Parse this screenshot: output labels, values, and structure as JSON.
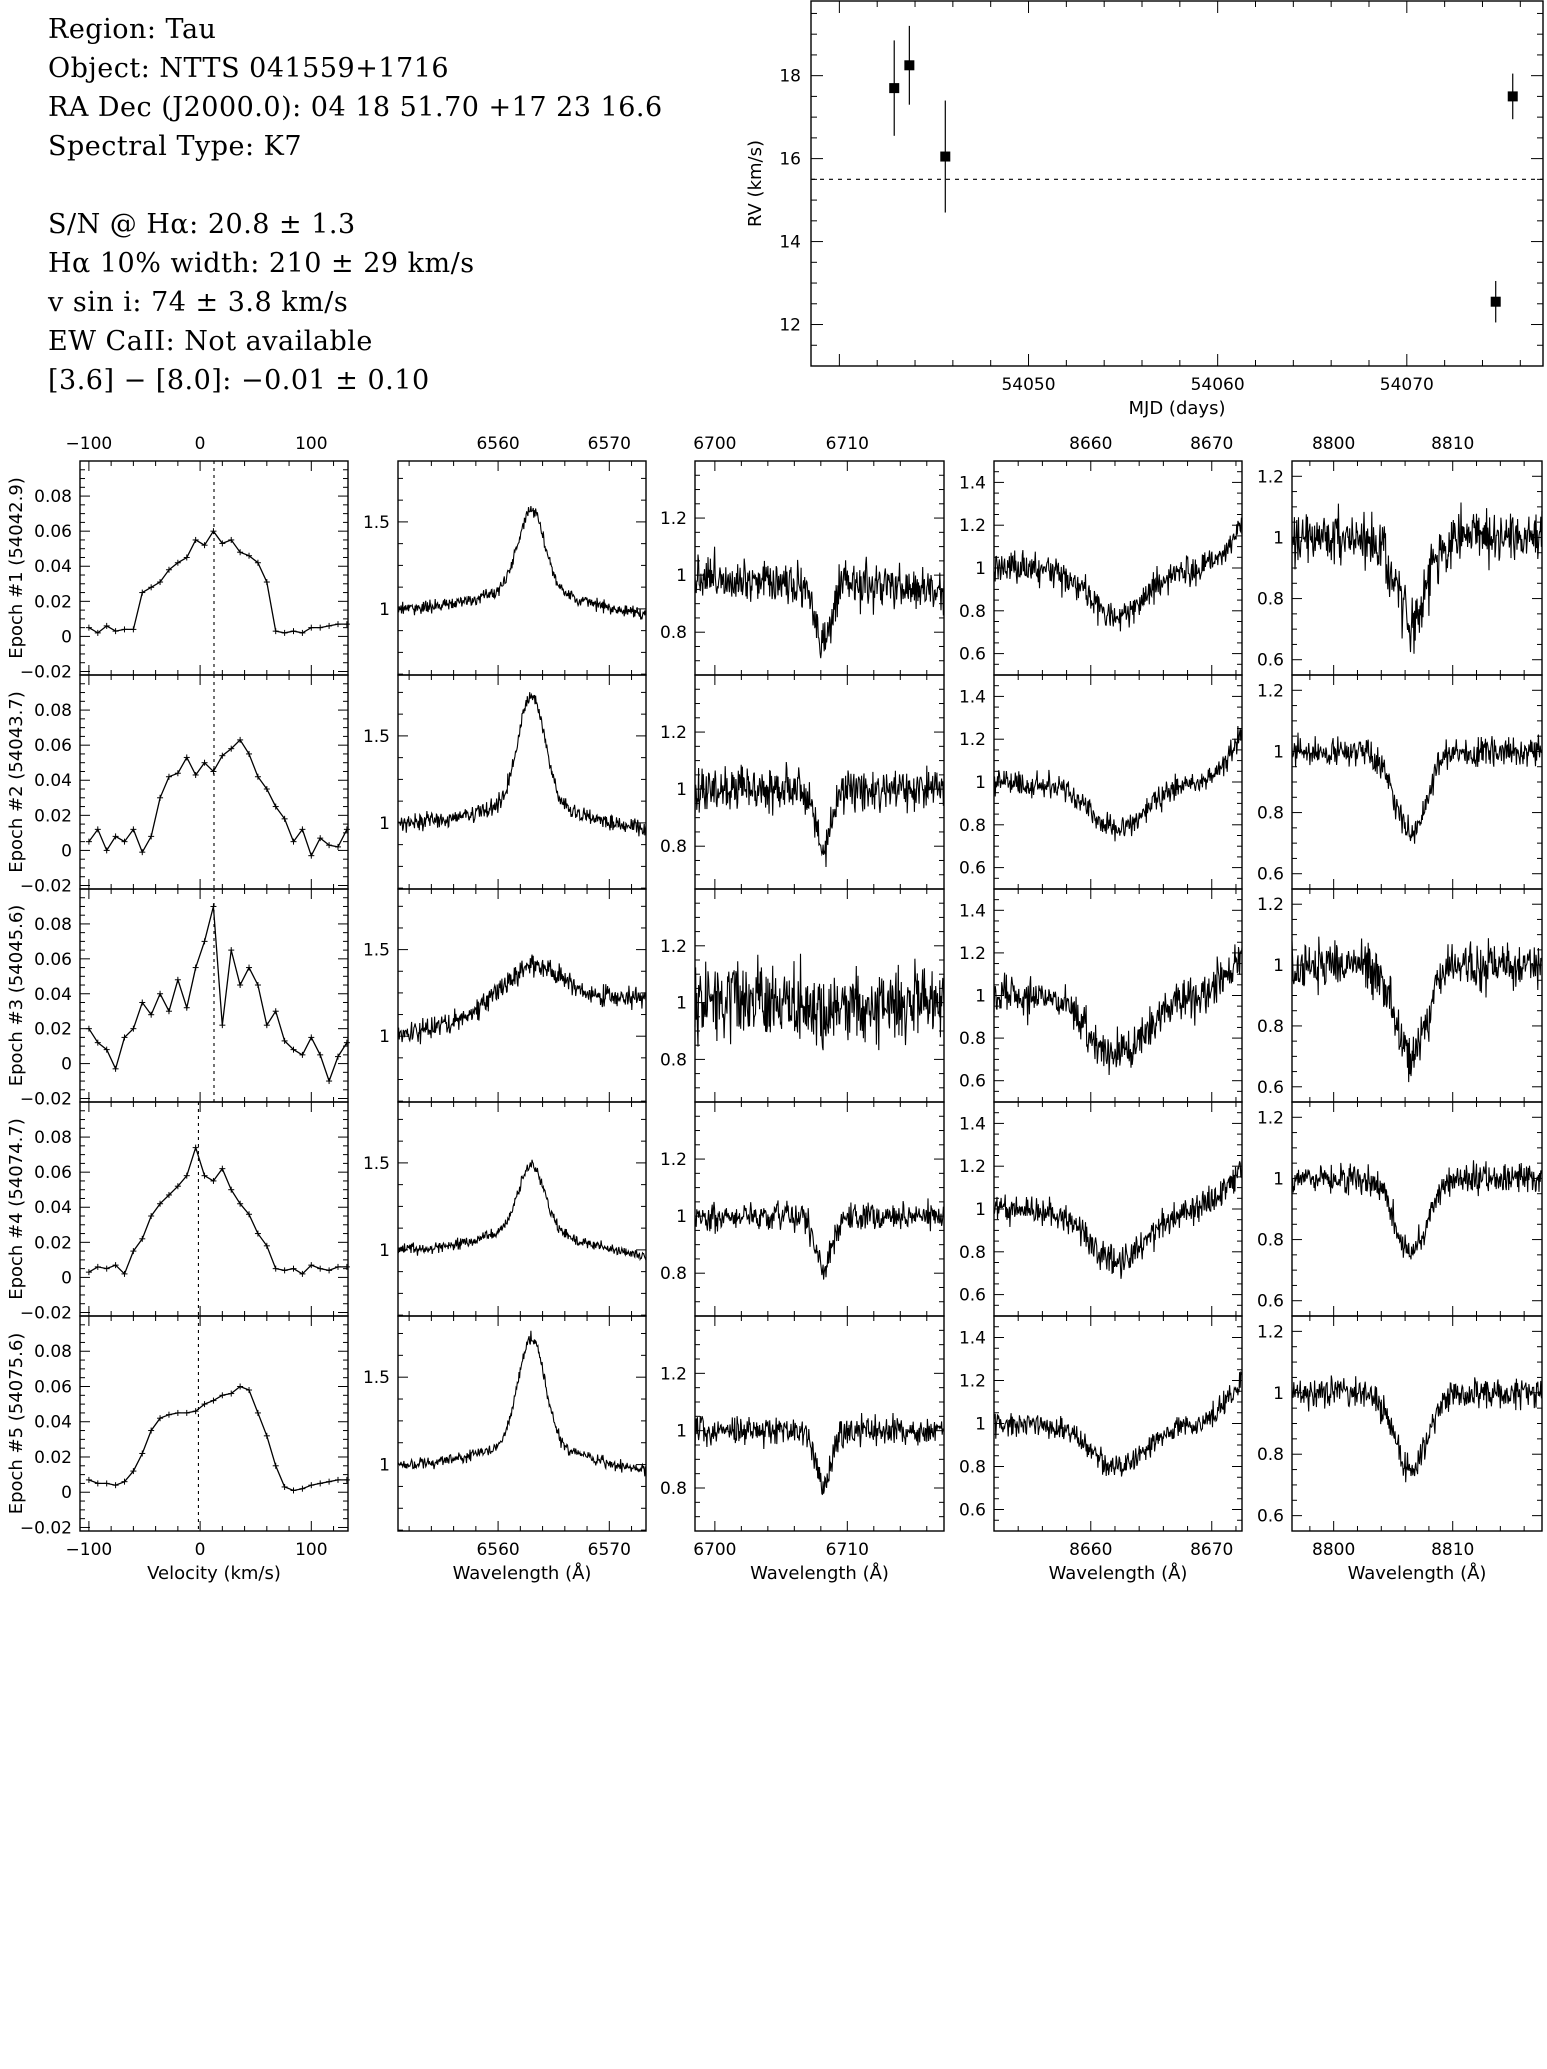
{
  "header": {
    "lines": [
      "Region: Tau",
      "Object: NTTS 041559+1716",
      "RA Dec (J2000.0): 04 18 51.70 +17 23 16.6",
      "Spectral Type: K7",
      "S/N @ Hα: 20.8 ± 1.3",
      "Hα 10% width: 210 ± 29 km/s",
      "v sin i: 74 ± 3.8 km/s",
      "EW CaII: Not available",
      "[3.6] − [8.0]: −0.01 ± 0.10"
    ]
  },
  "chart_data": [
    {
      "type": "scatter",
      "id": "rv",
      "xlabel": "MJD (days)",
      "ylabel": "RV (km/s)",
      "xlim": [
        54038.5,
        54077.2
      ],
      "ylim": [
        11,
        19.8
      ],
      "xticks": [
        54050,
        54060,
        54070
      ],
      "yticks": [
        12,
        14,
        16,
        18
      ],
      "reference_line": 15.5,
      "points": [
        {
          "x": 54042.9,
          "y": 17.7,
          "err": 1.15
        },
        {
          "x": 54043.7,
          "y": 18.25,
          "err": 0.95
        },
        {
          "x": 54045.6,
          "y": 16.05,
          "err": 1.35
        },
        {
          "x": 54074.7,
          "y": 12.55,
          "err": 0.5
        },
        {
          "x": 54075.6,
          "y": 17.5,
          "err": 0.55
        }
      ]
    },
    {
      "type": "line",
      "id": "ccf",
      "xlabel": "Velocity (km/s)",
      "xlim": [
        -108,
        133
      ],
      "ylim": [
        -0.022,
        0.1
      ],
      "xticks": [
        -100,
        0,
        100
      ],
      "yticks": [
        -0.02,
        0,
        0.02,
        0.04,
        0.06,
        0.08
      ],
      "ytick_labels": [
        "−0.02",
        "0",
        "0.02",
        "0.04",
        "0.06",
        "0.08"
      ],
      "xtick_labels": [
        "−100",
        "0",
        "100"
      ],
      "epoch_labels": [
        "Epoch #1 (54042.9)",
        "Epoch #2 (54043.7)",
        "Epoch #3 (54045.6)",
        "Epoch #4 (54074.7)",
        "Epoch #5 (54075.6)"
      ],
      "rv_markers": [
        12.5,
        12.5,
        12.5,
        -1.5,
        -1.5
      ],
      "series": [
        {
          "x": [
            -100,
            -92,
            -84,
            -76,
            -68,
            -60,
            -52,
            -44,
            -36,
            -28,
            -20,
            -12,
            -4,
            4,
            12,
            20,
            28,
            36,
            44,
            52,
            60,
            68,
            76,
            84,
            92,
            100,
            108,
            116,
            124,
            132
          ],
          "y": [
            0.005,
            0.002,
            0.006,
            0.003,
            0.004,
            0.004,
            0.025,
            0.028,
            0.031,
            0.038,
            0.042,
            0.045,
            0.055,
            0.052,
            0.06,
            0.053,
            0.055,
            0.048,
            0.046,
            0.042,
            0.031,
            0.003,
            0.002,
            0.003,
            0.002,
            0.005,
            0.005,
            0.006,
            0.007,
            0.007
          ]
        },
        {
          "x": [
            -100,
            -92,
            -84,
            -76,
            -68,
            -60,
            -52,
            -44,
            -36,
            -28,
            -20,
            -12,
            -4,
            4,
            12,
            20,
            28,
            36,
            44,
            52,
            60,
            68,
            76,
            84,
            92,
            100,
            108,
            116,
            124,
            132
          ],
          "y": [
            0.005,
            0.012,
            0.0,
            0.008,
            0.005,
            0.012,
            -0.001,
            0.008,
            0.03,
            0.042,
            0.044,
            0.053,
            0.043,
            0.05,
            0.045,
            0.054,
            0.058,
            0.063,
            0.055,
            0.042,
            0.035,
            0.025,
            0.018,
            0.005,
            0.012,
            -0.003,
            0.007,
            0.003,
            0.002,
            0.012
          ]
        },
        {
          "x": [
            -100,
            -92,
            -84,
            -76,
            -68,
            -60,
            -52,
            -44,
            -36,
            -28,
            -20,
            -12,
            -4,
            4,
            12,
            20,
            28,
            36,
            44,
            52,
            60,
            68,
            76,
            84,
            92,
            100,
            108,
            116,
            124,
            132
          ],
          "y": [
            0.02,
            0.012,
            0.008,
            -0.003,
            0.015,
            0.02,
            0.035,
            0.028,
            0.04,
            0.03,
            0.048,
            0.032,
            0.055,
            0.07,
            0.09,
            0.022,
            0.065,
            0.045,
            0.055,
            0.045,
            0.022,
            0.03,
            0.013,
            0.008,
            0.005,
            0.015,
            0.005,
            -0.01,
            0.004,
            0.012
          ]
        },
        {
          "x": [
            -100,
            -92,
            -84,
            -76,
            -68,
            -60,
            -52,
            -44,
            -36,
            -28,
            -20,
            -12,
            -4,
            4,
            12,
            20,
            28,
            36,
            44,
            52,
            60,
            68,
            76,
            84,
            92,
            100,
            108,
            116,
            124,
            132
          ],
          "y": [
            0.003,
            0.006,
            0.005,
            0.007,
            0.002,
            0.015,
            0.022,
            0.035,
            0.042,
            0.047,
            0.052,
            0.058,
            0.074,
            0.058,
            0.055,
            0.062,
            0.05,
            0.042,
            0.036,
            0.025,
            0.018,
            0.005,
            0.004,
            0.005,
            0.002,
            0.007,
            0.005,
            0.004,
            0.006,
            0.006
          ]
        },
        {
          "x": [
            -100,
            -92,
            -84,
            -76,
            -68,
            -60,
            -52,
            -44,
            -36,
            -28,
            -20,
            -12,
            -4,
            4,
            12,
            20,
            28,
            36,
            44,
            52,
            60,
            68,
            76,
            84,
            92,
            100,
            108,
            116,
            124,
            132
          ],
          "y": [
            0.007,
            0.005,
            0.005,
            0.004,
            0.006,
            0.012,
            0.022,
            0.035,
            0.042,
            0.044,
            0.045,
            0.045,
            0.046,
            0.05,
            0.052,
            0.055,
            0.056,
            0.06,
            0.058,
            0.045,
            0.032,
            0.015,
            0.003,
            0.001,
            0.002,
            0.004,
            0.005,
            0.006,
            0.007,
            0.007
          ]
        }
      ]
    },
    {
      "type": "line",
      "id": "halpha",
      "xlabel": "Wavelength (Å)",
      "xlim": [
        6551,
        6573.3
      ],
      "ylim": [
        0.62,
        1.85
      ],
      "xticks": [
        6560,
        6570
      ],
      "yticks": [
        1,
        1.5
      ],
      "ytick_labels": [
        "1",
        "1.5"
      ],
      "profile": {
        "kind": "emission",
        "center": 6563.0,
        "sigma": 1.2,
        "wing": 4.5,
        "wing_amp": 0.13
      },
      "epochs": [
        {
          "depth": 0.46,
          "noise": 0.022,
          "slope": 0.0
        },
        {
          "depth": 0.62,
          "noise": 0.028,
          "slope": 0.0
        },
        {
          "depth": 0.2,
          "noise": 0.04,
          "slope": 0.012,
          "broad": 2.3
        },
        {
          "depth": 0.37,
          "noise": 0.02,
          "slope": 0.0
        },
        {
          "depth": 0.62,
          "noise": 0.02,
          "slope": 0.0
        }
      ]
    },
    {
      "type": "line",
      "id": "li",
      "xlabel": "Wavelength (Å)",
      "xlim": [
        6698.5,
        6717.3
      ],
      "ylim": [
        0.65,
        1.4
      ],
      "xticks": [
        6700,
        6710
      ],
      "yticks": [
        0.8,
        1,
        1.2
      ],
      "ytick_labels": [
        "0.8",
        "1",
        "1.2"
      ],
      "profile": {
        "kind": "absorption",
        "center": 6708.2,
        "sigma": 0.6
      },
      "epochs": [
        {
          "depth": 0.22,
          "noise": 0.05,
          "slope": -0.003
        },
        {
          "depth": 0.2,
          "noise": 0.045,
          "slope": 0.0
        },
        {
          "depth": 0.05,
          "noise": 0.085,
          "slope": 0.0
        },
        {
          "depth": 0.18,
          "noise": 0.03,
          "slope": 0.0
        },
        {
          "depth": 0.19,
          "noise": 0.03,
          "slope": 0.0
        }
      ]
    },
    {
      "type": "line",
      "id": "ca8662",
      "xlabel": "Wavelength (Å)",
      "xlim": [
        8652,
        8672.5
      ],
      "ylim": [
        0.5,
        1.5
      ],
      "xticks": [
        8660,
        8670
      ],
      "yticks": [
        0.6,
        0.8,
        1,
        1.2,
        1.4
      ],
      "ytick_labels": [
        "0.6",
        "0.8",
        "1",
        "1.2",
        "1.4"
      ],
      "profile": {
        "kind": "absorption",
        "center": 8662.2,
        "sigma": 2.4,
        "rise": true
      },
      "epochs": [
        {
          "depth": 0.22,
          "noise": 0.045,
          "slope": 0.0
        },
        {
          "depth": 0.22,
          "noise": 0.035,
          "slope": 0.0
        },
        {
          "depth": 0.28,
          "noise": 0.06,
          "slope": 0.0
        },
        {
          "depth": 0.24,
          "noise": 0.045,
          "slope": 0.0
        },
        {
          "depth": 0.2,
          "noise": 0.035,
          "slope": 0.0
        }
      ]
    },
    {
      "type": "line",
      "id": "ca8806",
      "xlabel": "Wavelength (Å)",
      "xlim": [
        8796.5,
        8817.5
      ],
      "ylim": [
        0.55,
        1.25
      ],
      "xticks": [
        8800,
        8810
      ],
      "yticks": [
        0.6,
        0.8,
        1,
        1.2
      ],
      "ytick_labels": [
        "0.6",
        "0.8",
        "1",
        "1.2"
      ],
      "profile": {
        "kind": "absorption",
        "center": 8806.5,
        "sigma": 1.3
      },
      "epochs": [
        {
          "depth": 0.28,
          "noise": 0.055,
          "slope": 0.0
        },
        {
          "depth": 0.27,
          "noise": 0.03,
          "slope": 0.0
        },
        {
          "depth": 0.3,
          "noise": 0.05,
          "slope": 0.0
        },
        {
          "depth": 0.24,
          "noise": 0.03,
          "slope": 0.0
        },
        {
          "depth": 0.26,
          "noise": 0.03,
          "slope": 0.0
        }
      ]
    }
  ]
}
